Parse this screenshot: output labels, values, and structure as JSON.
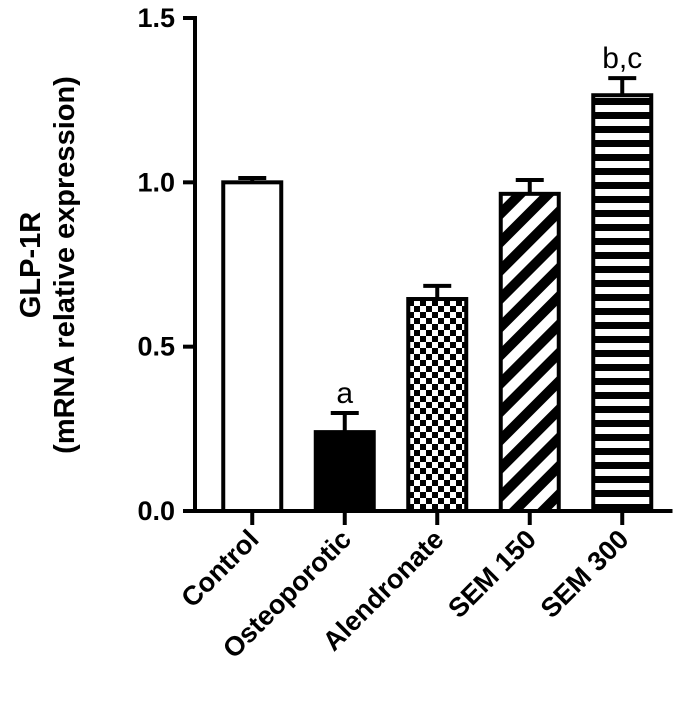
{
  "chart_data": {
    "type": "bar",
    "ylabel": [
      "GLP-1R",
      "(mRNA relative expression)"
    ],
    "categories": [
      "Control",
      "Osteoporotic",
      "Alendronate",
      "SEM 150",
      "SEM 300"
    ],
    "values": [
      1.0,
      0.24,
      0.645,
      0.965,
      1.265
    ],
    "errors": [
      0.013,
      0.058,
      0.04,
      0.042,
      0.052
    ],
    "fills": [
      "white",
      "black",
      "checker",
      "diagonal",
      "horizontal"
    ],
    "annotations": [
      {
        "category": "Osteoporotic",
        "text": "a"
      },
      {
        "category": "SEM 300",
        "text": "b,c"
      }
    ],
    "ylim": [
      0,
      1.5
    ],
    "yticks": [
      {
        "value": 0,
        "label": "0.0"
      },
      0.5,
      {
        "value": 1,
        "label": "1.0"
      },
      1.5
    ],
    "color": "#000000"
  }
}
